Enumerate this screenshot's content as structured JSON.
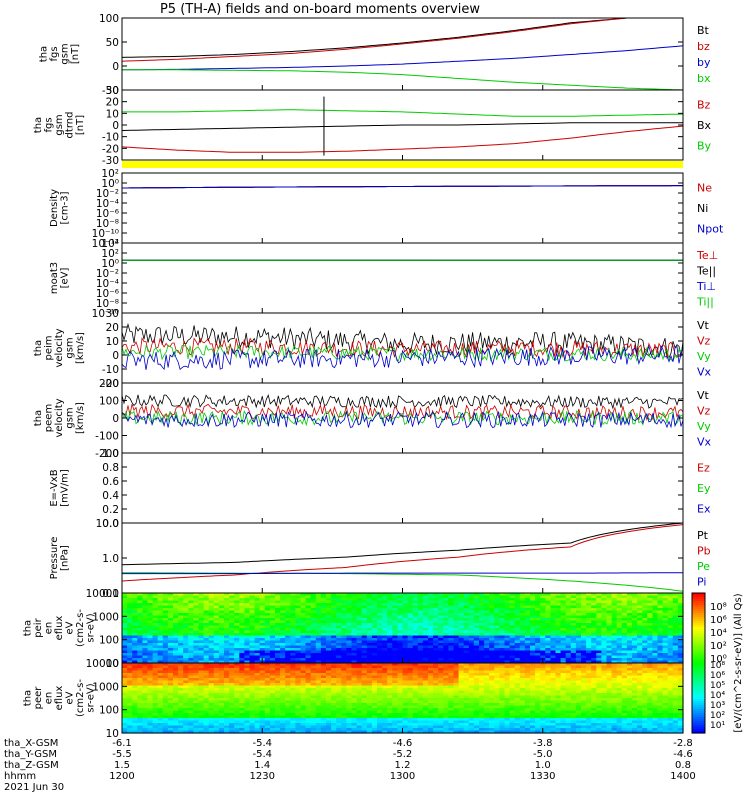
{
  "title": "P5 (TH-A) fields and on-board moments overview",
  "chart_data": [
    {
      "type": "line",
      "ylabel_lines": [
        "tha",
        "fgs",
        "gsm",
        "[nT]"
      ],
      "yticks": [
        "100",
        "50",
        "0",
        "-50"
      ],
      "ylim": [
        -50,
        100
      ],
      "series": [
        {
          "name": "Bt",
          "color": "#000000",
          "x": [
            0,
            0.1,
            0.2,
            0.3,
            0.4,
            0.5,
            0.6,
            0.7,
            0.8,
            0.9,
            1.0
          ],
          "y": [
            18,
            20,
            24,
            30,
            38,
            48,
            60,
            74,
            90,
            100,
            100
          ]
        },
        {
          "name": "bz",
          "color": "#cc0000",
          "x": [
            0,
            0.1,
            0.2,
            0.3,
            0.4,
            0.5,
            0.6,
            0.7,
            0.8,
            0.9,
            1.0
          ],
          "y": [
            10,
            14,
            20,
            26,
            35,
            46,
            58,
            72,
            88,
            100,
            100
          ]
        },
        {
          "name": "by",
          "color": "#0000cc",
          "x": [
            0,
            0.1,
            0.2,
            0.3,
            0.4,
            0.5,
            0.6,
            0.7,
            0.8,
            0.9,
            1.0
          ],
          "y": [
            -8,
            -7,
            -5,
            -3,
            0,
            4,
            10,
            16,
            24,
            32,
            42
          ]
        },
        {
          "name": "bx",
          "color": "#00cc00",
          "x": [
            0,
            0.1,
            0.2,
            0.3,
            0.4,
            0.5,
            0.6,
            0.7,
            0.8,
            0.9,
            1.0
          ],
          "y": [
            -8,
            -8,
            -9,
            -10,
            -13,
            -18,
            -26,
            -34,
            -40,
            -46,
            -50
          ]
        }
      ]
    },
    {
      "type": "line",
      "ylabel_lines": [
        "tha",
        "fgs",
        "gsm",
        "dtrnd",
        "[nT]"
      ],
      "yticks": [
        "30",
        "20",
        "10",
        "0",
        "-10",
        "-20",
        "-30"
      ],
      "ylim": [
        -32,
        32
      ],
      "series": [
        {
          "name": "Bz",
          "color": "#cc0000",
          "x": [
            0,
            0.1,
            0.2,
            0.3,
            0.4,
            0.5,
            0.6,
            0.7,
            0.8,
            0.9,
            1.0
          ],
          "y": [
            -20,
            -23,
            -25,
            -25,
            -24,
            -22,
            -20,
            -17,
            -12,
            -6,
            -1
          ]
        },
        {
          "name": "Bx",
          "color": "#000000",
          "x": [
            0,
            0.1,
            0.2,
            0.3,
            0.4,
            0.5,
            0.6,
            0.7,
            0.8,
            0.9,
            1.0
          ],
          "y": [
            -5,
            -4,
            -3,
            -2,
            -1,
            0,
            0,
            1,
            2,
            2,
            2
          ]
        },
        {
          "name": "By",
          "color": "#00cc00",
          "x": [
            0,
            0.1,
            0.2,
            0.3,
            0.4,
            0.5,
            0.6,
            0.7,
            0.8,
            0.9,
            1.0
          ],
          "y": [
            12,
            12,
            13,
            14,
            13,
            12,
            10,
            8,
            8,
            9,
            10
          ]
        }
      ],
      "spike_x": 0.36
    },
    {
      "type": "line",
      "ylabel_lines": [
        "Density",
        "[cm-3]"
      ],
      "yticks": [
        "10²",
        "10⁰",
        "10⁻²",
        "10⁻⁴",
        "10⁻⁶",
        "10⁻⁸",
        "10⁻¹⁰",
        "10⁻¹²"
      ],
      "ylim": [
        -12,
        2
      ],
      "log": true,
      "series": [
        {
          "name": "Ne",
          "color": "#cc0000",
          "x": [
            0,
            1
          ],
          "y": [
            0.1,
            0.3
          ]
        },
        {
          "name": "Ni",
          "color": "#000000",
          "x": [
            0,
            1
          ],
          "y": [
            0.1,
            0.3
          ]
        },
        {
          "name": "Npot",
          "color": "#0000cc",
          "x": [
            0,
            1
          ],
          "y": [
            0.1,
            0.3
          ]
        }
      ]
    },
    {
      "type": "line",
      "ylabel_lines": [
        "moat3",
        "[eV]"
      ],
      "yticks": [
        "10⁴",
        "10²",
        "10⁰",
        "10⁻²",
        "10⁻⁴",
        "10⁻⁶",
        "10⁻⁸",
        "10⁻¹⁰"
      ],
      "ylim": [
        -10,
        4
      ],
      "log": true,
      "series": [
        {
          "name": "Te⊥",
          "color": "#cc0000",
          "x": [
            0,
            1
          ],
          "y": [
            3.5,
            3.3
          ]
        },
        {
          "name": "Te||",
          "color": "#000000",
          "x": [
            0,
            1
          ],
          "y": [
            3.6,
            3.4
          ]
        },
        {
          "name": "Ti⊥",
          "color": "#0000cc",
          "x": [
            0,
            1
          ],
          "y": [
            3.7,
            3.7
          ]
        },
        {
          "name": "Ti||",
          "color": "#00cc00",
          "x": [
            0,
            1
          ],
          "y": [
            3.65,
            3.6
          ]
        }
      ]
    },
    {
      "type": "line",
      "ylabel_lines": [
        "tha",
        "peim",
        "velocity",
        "gsm",
        "[km/s]"
      ],
      "yticks": [
        "30",
        "20",
        "10",
        "0",
        "-10",
        "-20"
      ],
      "ylim": [
        -20,
        30
      ],
      "noisy": true,
      "series": [
        {
          "name": "Vt",
          "color": "#000000",
          "x": [
            0,
            0.25,
            0.5,
            0.75,
            1.0
          ],
          "y": [
            14,
            13,
            8,
            9,
            5
          ],
          "amp": 8
        },
        {
          "name": "Vz",
          "color": "#cc0000",
          "x": [
            0,
            0.25,
            0.5,
            0.75,
            1.0
          ],
          "y": [
            6,
            6,
            4,
            5,
            3
          ],
          "amp": 6
        },
        {
          "name": "Vy",
          "color": "#00cc00",
          "x": [
            0,
            0.25,
            0.5,
            0.75,
            1.0
          ],
          "y": [
            2,
            2,
            1,
            1,
            0
          ],
          "amp": 5
        },
        {
          "name": "Vx",
          "color": "#0000cc",
          "x": [
            0,
            0.25,
            0.5,
            0.75,
            1.0
          ],
          "y": [
            -4,
            -3,
            -2,
            -1,
            0
          ],
          "amp": 7
        }
      ]
    },
    {
      "type": "line",
      "ylabel_lines": [
        "tha",
        "peem",
        "velocity",
        "gsm",
        "[km/s]"
      ],
      "yticks": [
        "200",
        "100",
        "0",
        "-100",
        "-200"
      ],
      "ylim": [
        -200,
        200
      ],
      "noisy": true,
      "series": [
        {
          "name": "Vt",
          "color": "#000000",
          "x": [
            0,
            0.5,
            1.0
          ],
          "y": [
            100,
            95,
            90
          ],
          "amp": 35
        },
        {
          "name": "Vz",
          "color": "#cc0000",
          "x": [
            0,
            0.5,
            1.0
          ],
          "y": [
            40,
            35,
            30
          ],
          "amp": 40
        },
        {
          "name": "Vy",
          "color": "#00cc00",
          "x": [
            0,
            0.5,
            1.0
          ],
          "y": [
            0,
            0,
            0
          ],
          "amp": 40
        },
        {
          "name": "Vx",
          "color": "#0000cc",
          "x": [
            0,
            0.5,
            1.0
          ],
          "y": [
            -10,
            -10,
            -10
          ],
          "amp": 45
        }
      ]
    },
    {
      "type": "line",
      "ylabel_lines": [
        "E=-VxB",
        "[mV/m]"
      ],
      "yticks": [
        "1.0",
        "0.8",
        "0.6",
        "0.4",
        "0.2",
        "0.0"
      ],
      "ylim": [
        0,
        1
      ],
      "series": [
        {
          "name": "Ez",
          "color": "#cc0000",
          "x": [],
          "y": []
        },
        {
          "name": "Ey",
          "color": "#00cc00",
          "x": [],
          "y": []
        },
        {
          "name": "Ex",
          "color": "#0000cc",
          "x": [],
          "y": []
        }
      ]
    },
    {
      "type": "line",
      "ylabel_lines": [
        "Pressure",
        "[nPa]"
      ],
      "yticks": [
        "10.0",
        "1.0",
        "0.1"
      ],
      "ylim": [
        -1.05,
        1.0
      ],
      "log": true,
      "series": [
        {
          "name": "Pt",
          "color": "#000000",
          "x": [
            0,
            0.2,
            0.4,
            0.6,
            0.8,
            1.0
          ],
          "y": [
            0.6,
            0.7,
            1.0,
            1.6,
            2.6,
            10
          ]
        },
        {
          "name": "Pb",
          "color": "#cc0000",
          "x": [
            0,
            0.2,
            0.4,
            0.6,
            0.8,
            1.0
          ],
          "y": [
            0.2,
            0.3,
            0.5,
            1.0,
            2.0,
            9
          ]
        },
        {
          "name": "Pe",
          "color": "#00cc00",
          "x": [
            0,
            0.2,
            0.4,
            0.6,
            0.8,
            1.0
          ],
          "y": [
            0.35,
            0.34,
            0.33,
            0.3,
            0.2,
            0.1
          ]
        },
        {
          "name": "Pi",
          "color": "#0000cc",
          "x": [
            0,
            0.2,
            0.4,
            0.6,
            0.8,
            1.0
          ],
          "y": [
            0.33,
            0.33,
            0.34,
            0.34,
            0.34,
            0.35
          ]
        }
      ]
    },
    {
      "type": "heatmap",
      "ylabel_lines": [
        "tha",
        "peir",
        "en",
        "eflux",
        "eV",
        "(cm2-s-",
        "sr-eV)"
      ],
      "yticks": [
        "10000",
        "1000",
        "100",
        "10"
      ],
      "ylim": [
        0.8,
        4.3
      ],
      "log": true
    },
    {
      "type": "heatmap",
      "ylabel_lines": [
        "tha",
        "peer",
        "en",
        "eflux",
        "eV",
        "(cm2-s-",
        "sr-eV)"
      ],
      "yticks": [
        "10000",
        "1000",
        "100",
        "10"
      ],
      "ylim": [
        0.8,
        4.3
      ],
      "log": true
    }
  ],
  "colorbar": {
    "label": "[eV/(cm^2-s-sr-eV)] (All Qs)",
    "upper_ticks": [
      "10⁸",
      "10⁶",
      "10⁴",
      "10²",
      "10⁰"
    ],
    "lower_ticks": [
      "10⁸",
      "10⁶",
      "10⁵",
      "10⁴",
      "10³",
      "10²",
      "10¹"
    ]
  },
  "time_axis": {
    "rows": [
      {
        "label": "tha_X-GSM",
        "values": [
          "-6.1",
          "-5.4",
          "-4.6",
          "-3.8",
          "-2.8"
        ]
      },
      {
        "label": "tha_Y-GSM",
        "values": [
          "-5.5",
          "-5.4",
          "-5.2",
          "-5.0",
          "-4.6"
        ]
      },
      {
        "label": "tha_Z-GSM",
        "values": [
          "1.5",
          "1.4",
          "1.2",
          "1.0",
          "0.8"
        ]
      },
      {
        "label": "hhmm",
        "values": [
          "1200",
          "1230",
          "1300",
          "1330",
          "1400"
        ]
      }
    ],
    "date": "2021 Jun 30"
  }
}
